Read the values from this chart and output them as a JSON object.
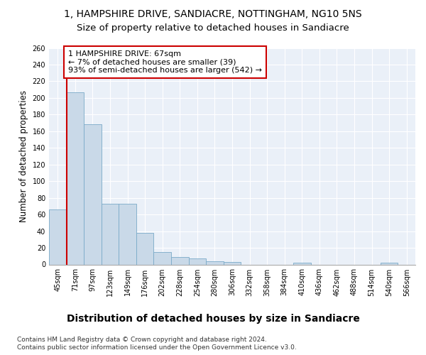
{
  "title": "1, HAMPSHIRE DRIVE, SANDIACRE, NOTTINGHAM, NG10 5NS",
  "subtitle": "Size of property relative to detached houses in Sandiacre",
  "xlabel_bottom": "Distribution of detached houses by size in Sandiacre",
  "ylabel": "Number of detached properties",
  "footer_line1": "Contains HM Land Registry data © Crown copyright and database right 2024.",
  "footer_line2": "Contains public sector information licensed under the Open Government Licence v3.0.",
  "bin_labels": [
    "45sqm",
    "71sqm",
    "97sqm",
    "123sqm",
    "149sqm",
    "176sqm",
    "202sqm",
    "228sqm",
    "254sqm",
    "280sqm",
    "306sqm",
    "332sqm",
    "358sqm",
    "384sqm",
    "410sqm",
    "436sqm",
    "462sqm",
    "488sqm",
    "514sqm",
    "540sqm",
    "566sqm"
  ],
  "bar_values": [
    66,
    207,
    168,
    73,
    73,
    38,
    15,
    9,
    7,
    4,
    3,
    0,
    0,
    0,
    2,
    0,
    0,
    0,
    0,
    2,
    0
  ],
  "bar_color": "#c9d9e8",
  "bar_edgecolor": "#7aaac8",
  "annotation_box_text": "1 HAMPSHIRE DRIVE: 67sqm\n← 7% of detached houses are smaller (39)\n93% of semi-detached houses are larger (542) →",
  "annotation_box_edgecolor": "#cc0000",
  "vline_color": "#cc0000",
  "vline_x_bin": 0.5,
  "ylim": [
    0,
    260
  ],
  "yticks": [
    0,
    20,
    40,
    60,
    80,
    100,
    120,
    140,
    160,
    180,
    200,
    220,
    240,
    260
  ],
  "background_color": "#eaf0f8",
  "grid_color": "#ffffff",
  "title_fontsize": 10,
  "subtitle_fontsize": 9.5,
  "annot_fontsize": 8,
  "tick_fontsize": 7,
  "ylabel_fontsize": 8.5,
  "xlabel_fontsize": 10,
  "footer_fontsize": 6.5
}
